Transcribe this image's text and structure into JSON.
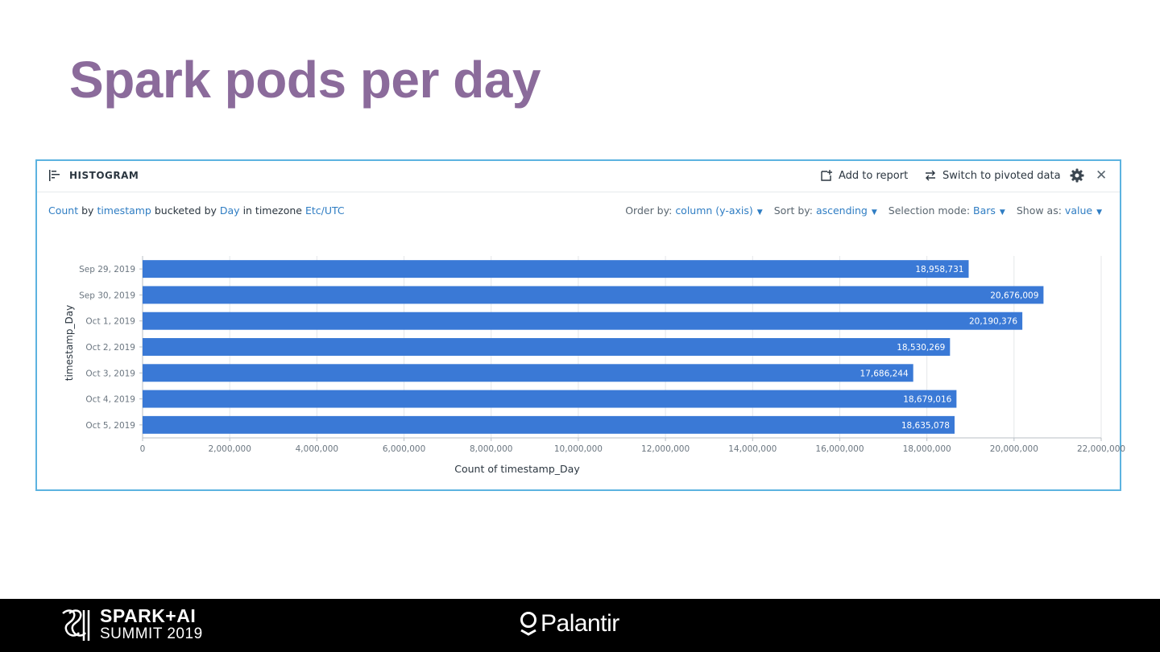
{
  "slide": {
    "title": "Spark pods per day"
  },
  "panel": {
    "header_label": "HISTOGRAM",
    "add_to_report": "Add to report",
    "switch_pivoted": "Switch to pivoted data"
  },
  "description": {
    "count": "Count",
    "by": "by",
    "field": "timestamp",
    "bucketed_by": "bucketed by",
    "unit": "Day",
    "in_timezone": "in timezone",
    "timezone": "Etc/UTC"
  },
  "options": {
    "order_by_label": "Order by:",
    "order_by_value": "column (y-axis)",
    "sort_by_label": "Sort by:",
    "sort_by_value": "ascending",
    "selection_label": "Selection mode:",
    "selection_value": "Bars",
    "show_as_label": "Show as:",
    "show_as_value": "value"
  },
  "chart_data": {
    "type": "bar",
    "orientation": "horizontal",
    "categories": [
      "Sep 29, 2019",
      "Sep 30, 2019",
      "Oct 1, 2019",
      "Oct 2, 2019",
      "Oct 3, 2019",
      "Oct 4, 2019",
      "Oct 5, 2019"
    ],
    "values": [
      18958731,
      20676009,
      20190376,
      18530269,
      17686244,
      18679016,
      18635078
    ],
    "value_labels": [
      "18,958,731",
      "20,676,009",
      "20,190,376",
      "18,530,269",
      "17,686,244",
      "18,679,016",
      "18,635,078"
    ],
    "xlabel": "Count of timestamp_Day",
    "ylabel": "timestamp_Day",
    "xlim": [
      0,
      22000000
    ],
    "xticks": [
      0,
      2000000,
      4000000,
      6000000,
      8000000,
      10000000,
      12000000,
      14000000,
      16000000,
      18000000,
      20000000,
      22000000
    ],
    "xtick_labels": [
      "0",
      "2,000,000",
      "4,000,000",
      "6,000,000",
      "8,000,000",
      "10,000,000",
      "12,000,000",
      "14,000,000",
      "16,000,000",
      "18,000,000",
      "20,000,000",
      "22,000,000"
    ],
    "bar_color": "#3a79d6",
    "grid": true
  },
  "footer": {
    "brand1_line1": "SPARK+AI",
    "brand1_line2": "SUMMIT 2019",
    "brand2": "Palantir"
  }
}
